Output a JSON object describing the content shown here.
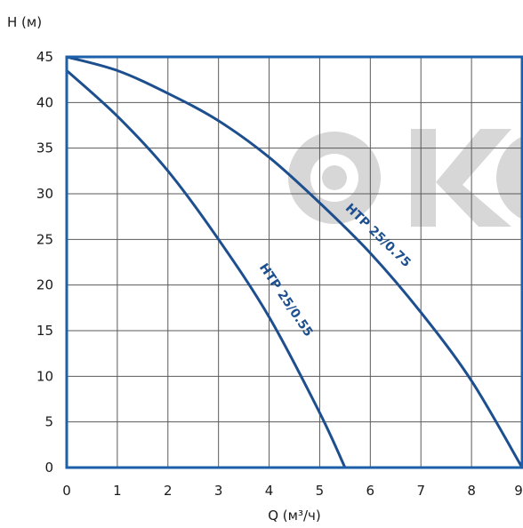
{
  "colors": {
    "curve": "#1d4f8f",
    "frame": "#1d5fa8",
    "grid": "#5a5a5a",
    "watermark": "#d7d7d7"
  },
  "watermark": {
    "text": "OKO"
  },
  "chart_data": {
    "type": "line",
    "title": "",
    "xlabel": "Q (м³/ч)",
    "ylabel": "H (м)",
    "xlim": [
      0,
      9
    ],
    "ylim": [
      0,
      45
    ],
    "xticks": [
      "0",
      "1",
      "2",
      "3",
      "4",
      "5",
      "6",
      "7",
      "8",
      "9"
    ],
    "yticks": [
      "0",
      "5",
      "10",
      "15",
      "20",
      "25",
      "30",
      "35",
      "40",
      "45"
    ],
    "grid": true,
    "series": [
      {
        "name": "HTP 25/0.55",
        "x": [
          0,
          1,
          2,
          3,
          4,
          5,
          5.5
        ],
        "y": [
          43.5,
          38.5,
          32.5,
          25,
          16.5,
          6,
          0
        ]
      },
      {
        "name": "HTP 25/0.75",
        "x": [
          0,
          1,
          2,
          3,
          4,
          5,
          6,
          7,
          8,
          9
        ],
        "y": [
          45,
          43.5,
          41,
          38,
          34,
          29,
          23.5,
          17,
          9.5,
          0
        ]
      }
    ]
  }
}
